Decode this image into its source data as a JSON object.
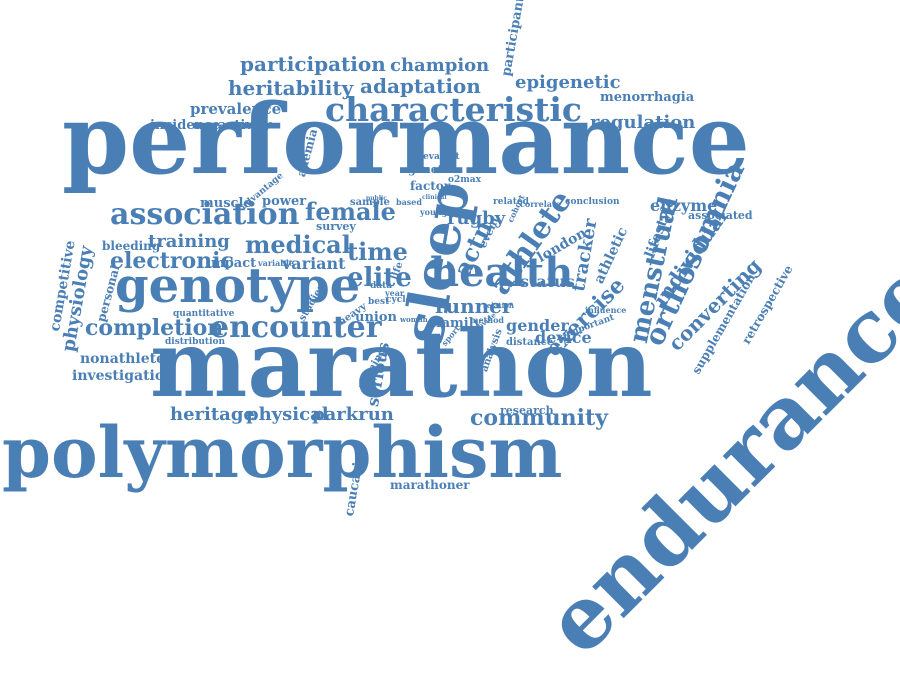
{
  "color": "#4a7fb5",
  "words": [
    {
      "text": "performance"
    },
    {
      "text": "marathon"
    },
    {
      "text": "polymorphism"
    },
    {
      "text": "endurance"
    },
    {
      "text": "genotype"
    },
    {
      "text": "characteristic"
    },
    {
      "text": "sleep"
    },
    {
      "text": "association"
    },
    {
      "text": "encounter"
    },
    {
      "text": "health"
    },
    {
      "text": "participation"
    },
    {
      "text": "champion"
    },
    {
      "text": "heritability"
    },
    {
      "text": "adaptation"
    },
    {
      "text": "epigenetic"
    },
    {
      "text": "regulation"
    },
    {
      "text": "menorrhagia"
    },
    {
      "text": "prevalence"
    },
    {
      "text": "incidence"
    },
    {
      "text": "activity"
    },
    {
      "text": "participant"
    },
    {
      "text": "female"
    },
    {
      "text": "medical"
    },
    {
      "text": "electronic"
    },
    {
      "text": "training"
    },
    {
      "text": "completion"
    },
    {
      "text": "community"
    },
    {
      "text": "athlete"
    },
    {
      "text": "menstrual"
    },
    {
      "text": "orthosomnia"
    },
    {
      "text": "exercise"
    },
    {
      "text": "actn"
    },
    {
      "text": "elite"
    },
    {
      "text": "time"
    },
    {
      "text": "runner"
    },
    {
      "text": "variant"
    },
    {
      "text": "heritage"
    },
    {
      "text": "physical"
    },
    {
      "text": "parkrun"
    },
    {
      "text": "physiology"
    },
    {
      "text": "competitive"
    },
    {
      "text": "nonathlete"
    },
    {
      "text": "investigation"
    },
    {
      "text": "enzyme"
    },
    {
      "text": "associated"
    },
    {
      "text": "individual"
    },
    {
      "text": "lifestyle"
    },
    {
      "text": "converting"
    },
    {
      "text": "supplementation"
    },
    {
      "text": "retrospective"
    },
    {
      "text": "tracker"
    },
    {
      "text": "athletic"
    },
    {
      "text": "london"
    },
    {
      "text": "status"
    },
    {
      "text": "gender"
    },
    {
      "text": "device"
    },
    {
      "text": "rugby"
    },
    {
      "text": "factor"
    },
    {
      "text": "genetic"
    },
    {
      "text": "prevalent"
    },
    {
      "text": "o2max"
    },
    {
      "text": "anemia"
    },
    {
      "text": "muscle"
    },
    {
      "text": "power"
    },
    {
      "text": "bleeding"
    },
    {
      "text": "impact"
    },
    {
      "text": "quantitative"
    },
    {
      "text": "distribution"
    },
    {
      "text": "personal"
    },
    {
      "text": "union"
    },
    {
      "text": "family"
    },
    {
      "text": "research"
    },
    {
      "text": "caucasian"
    },
    {
      "text": "marathoner"
    },
    {
      "text": "serious"
    },
    {
      "text": "survey"
    },
    {
      "text": "sample"
    },
    {
      "text": "based"
    },
    {
      "text": "young"
    },
    {
      "text": "related"
    },
    {
      "text": "conclusion"
    },
    {
      "text": "event"
    },
    {
      "text": "cohort"
    },
    {
      "text": "correlate"
    },
    {
      "text": "heavy"
    },
    {
      "text": "studies"
    },
    {
      "text": "data"
    },
    {
      "text": "life"
    },
    {
      "text": "best"
    },
    {
      "text": "cycle"
    },
    {
      "text": "year"
    },
    {
      "text": "clinical"
    },
    {
      "text": "analysis"
    },
    {
      "text": "distance"
    },
    {
      "text": "important"
    },
    {
      "text": "influence"
    },
    {
      "text": "relation"
    },
    {
      "text": "method"
    },
    {
      "text": "provide"
    },
    {
      "text": "sport"
    },
    {
      "text": "running"
    },
    {
      "text": "woman"
    },
    {
      "text": "advantage"
    },
    {
      "text": "variable"
    },
    {
      "text": "public"
    }
  ]
}
